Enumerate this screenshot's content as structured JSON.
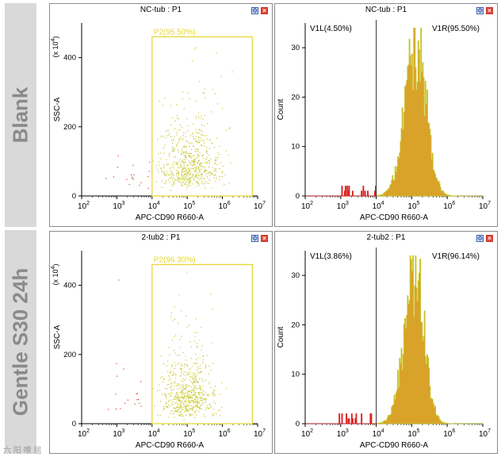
{
  "rows": [
    {
      "label": "Blank"
    },
    {
      "label": "Gentle S30 24h"
    }
  ],
  "colors": {
    "gated_dot": "#c8c832",
    "ungated_dot": "#e0352a",
    "gate_border": "#e6d83a",
    "hist_gated": "#d9a32a",
    "hist_gated_edge": "#c9c92e",
    "hist_ungated": "#dd2222",
    "divider": "#333333"
  },
  "icons": {
    "settings": "settings-icon",
    "close": "close-icon"
  },
  "watermark": "六 阳 嘌 屈",
  "chart_data": [
    {
      "type": "scatter",
      "title": "NC-tub : P1",
      "xlabel": "APC-CD90 R660-A",
      "ylabel": "SSC-A",
      "y_multiplier": "(x 10",
      "y_multiplier_exp": "4",
      "y_multiplier_close": ")",
      "x_scale": "log",
      "xlim_exp": [
        2,
        7
      ],
      "x_ticks_exp": [
        "2",
        "3",
        "4",
        "5",
        "6",
        "7"
      ],
      "x_tick_base": "10",
      "ylim": [
        0,
        500
      ],
      "y_ticks": [
        0,
        200,
        400
      ],
      "gate": {
        "name": "P2",
        "label": "P2(95.50%)",
        "percent": 95.5,
        "x_min_exp": 4.0,
        "x_max_exp": 6.85,
        "y_min": 0,
        "y_max": 460
      },
      "populations": [
        {
          "name": "gated",
          "color": "yellow",
          "n": 620,
          "x_center_exp": 5.05,
          "x_spread": 0.45,
          "y_median": 95,
          "y_spread": 0.55
        },
        {
          "name": "ungated",
          "color": "red",
          "n": 22,
          "x_center_exp": 3.45,
          "x_spread": 0.4,
          "y_median": 70,
          "y_spread": 0.5
        }
      ]
    },
    {
      "type": "histogram",
      "title": "NC-tub : P1",
      "xlabel": "APC-CD90 R660-A",
      "ylabel": "Count",
      "x_scale": "log",
      "xlim_exp": [
        2,
        7
      ],
      "x_ticks_exp": [
        "2",
        "3",
        "4",
        "5",
        "6",
        "7"
      ],
      "x_tick_base": "10",
      "ylim": [
        0,
        35
      ],
      "y_ticks": [
        0,
        10,
        20,
        30
      ],
      "divider_exp": 4.0,
      "regions": [
        {
          "name": "V1L",
          "label": "V1L(4.50%)",
          "percent": 4.5
        },
        {
          "name": "V1R",
          "label": "V1R(95.50%)",
          "percent": 95.5
        }
      ],
      "distribution": {
        "peak_exp": 5.12,
        "peak_count": 30,
        "sigma_left": 0.32,
        "sigma_right": 0.28,
        "low_counts_range": [
          3.0,
          4.0
        ],
        "low_max": 2
      }
    },
    {
      "type": "scatter",
      "title": "2-tub2 : P1",
      "xlabel": "APC-CD90 R660-A",
      "ylabel": "SSC-A",
      "y_multiplier": "(x 10",
      "y_multiplier_exp": "4",
      "y_multiplier_close": ")",
      "x_scale": "log",
      "xlim_exp": [
        2,
        7
      ],
      "x_ticks_exp": [
        "2",
        "3",
        "4",
        "5",
        "6",
        "7"
      ],
      "x_tick_base": "10",
      "ylim": [
        0,
        500
      ],
      "y_ticks": [
        0,
        200,
        400
      ],
      "gate": {
        "name": "P2",
        "label": "P2(96.30%)",
        "percent": 96.3,
        "x_min_exp": 4.0,
        "x_max_exp": 6.85,
        "y_min": 0,
        "y_max": 460
      },
      "populations": [
        {
          "name": "gated",
          "color": "yellow",
          "n": 620,
          "x_center_exp": 5.0,
          "x_spread": 0.4,
          "y_median": 85,
          "y_spread": 0.6
        },
        {
          "name": "ungated",
          "color": "red",
          "n": 18,
          "x_center_exp": 3.3,
          "x_spread": 0.35,
          "y_median": 80,
          "y_spread": 0.5
        }
      ]
    },
    {
      "type": "histogram",
      "title": "2-tub2 : P1",
      "xlabel": "APC-CD90 R660-A",
      "ylabel": "Count",
      "x_scale": "log",
      "xlim_exp": [
        2,
        7
      ],
      "x_ticks_exp": [
        "2",
        "3",
        "4",
        "5",
        "6",
        "7"
      ],
      "x_tick_base": "10",
      "ylim": [
        0,
        35
      ],
      "y_ticks": [
        0,
        10,
        20,
        30
      ],
      "divider_exp": 4.0,
      "regions": [
        {
          "name": "V1L",
          "label": "V1L(3.86%)",
          "percent": 3.86
        },
        {
          "name": "V1R",
          "label": "V1R(96.14%)",
          "percent": 96.14
        }
      ],
      "distribution": {
        "peak_exp": 5.08,
        "peak_count": 31,
        "sigma_left": 0.3,
        "sigma_right": 0.26,
        "low_counts_range": [
          2.9,
          3.4
        ],
        "low_max": 2
      }
    }
  ]
}
